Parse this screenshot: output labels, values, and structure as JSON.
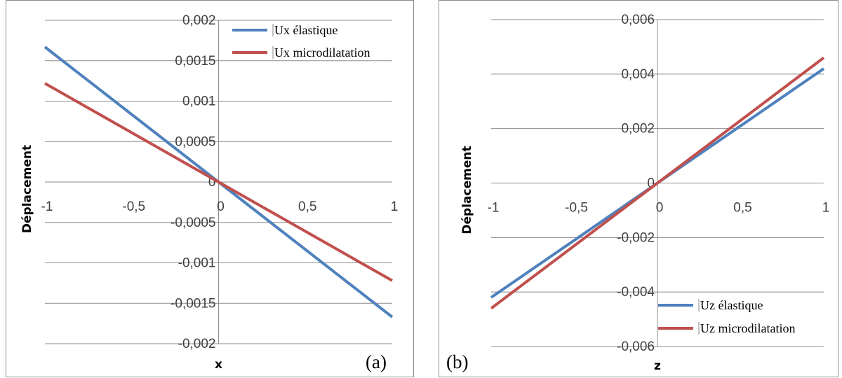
{
  "colors": {
    "elastic": "#4f81bd",
    "micro": "#c0504d",
    "grid": "#8c8c8c",
    "axis": "#8c8c8c"
  },
  "chart_data": [
    {
      "type": "line",
      "panel_label": "(a)",
      "xlabel": "x",
      "ylabel": "Déplacement",
      "xlim": [
        -1,
        1
      ],
      "ylim": [
        -0.002,
        0.002
      ],
      "x_ticks": [
        "-1",
        "-0,5",
        "0",
        "0,5",
        "1"
      ],
      "y_ticks": [
        "0,002",
        "0,0015",
        "0,001",
        "0,0005",
        "0",
        "-0,0005",
        "-0,001",
        "-0,0015",
        "-0,002"
      ],
      "grid": true,
      "legend_position": "top-right",
      "x": [
        -1,
        0,
        1
      ],
      "series": [
        {
          "name": "Ux élastique",
          "color": "#4f81bd",
          "values": [
            0.00167,
            0,
            -0.00167
          ]
        },
        {
          "name": "Ux microdilatation",
          "color": "#c0504d",
          "values": [
            0.00122,
            0,
            -0.00122
          ]
        }
      ]
    },
    {
      "type": "line",
      "panel_label": "(b)",
      "xlabel": "z",
      "ylabel": "Déplacement",
      "xlim": [
        -1,
        1
      ],
      "ylim": [
        -0.006,
        0.006
      ],
      "x_ticks": [
        "-1",
        "-0,5",
        "0",
        "0,5",
        "1"
      ],
      "y_ticks": [
        "0,006",
        "0,004",
        "0,002",
        "0",
        "-0,002",
        "-0,004",
        "-0,006"
      ],
      "grid": true,
      "legend_position": "bottom-right",
      "x": [
        -1,
        0,
        1
      ],
      "series": [
        {
          "name": "Uz élastique",
          "color": "#4f81bd",
          "values": [
            -0.0042,
            0,
            0.0042
          ]
        },
        {
          "name": "Uz microdilatation",
          "color": "#c0504d",
          "values": [
            -0.0046,
            0,
            0.0046
          ]
        }
      ]
    }
  ]
}
